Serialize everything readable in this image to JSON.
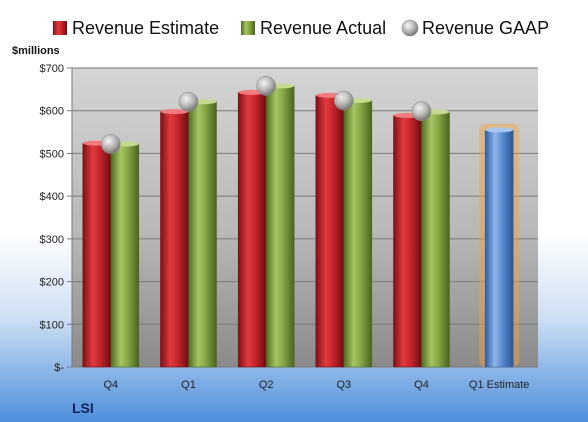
{
  "chart_data": {
    "type": "bar",
    "company": "LSI",
    "ylabel": "$millions",
    "categories": [
      "Q4",
      "Q1",
      "Q2",
      "Q3",
      "Q4",
      "Q1 Estimate"
    ],
    "ylim": [
      0,
      700
    ],
    "yticks": [
      0,
      100,
      200,
      300,
      400,
      500,
      600,
      700
    ],
    "ytick_labels": [
      "$-",
      "$100",
      "$200",
      "$300",
      "$400",
      "$500",
      "$600",
      "$700"
    ],
    "grid": true,
    "legend_position": "top",
    "series": [
      {
        "name": "Revenue Estimate",
        "marker": "bar",
        "color": "#c0272d",
        "values": [
          524,
          598,
          643,
          636,
          589,
          null
        ]
      },
      {
        "name": "Revenue Actual",
        "marker": "bar",
        "color": "#86a845",
        "values": [
          522,
          621,
          658,
          624,
          597,
          null
        ]
      },
      {
        "name": "Revenue GAAP",
        "marker": "circle",
        "color": "#b8b8b8",
        "values": [
          522,
          621,
          658,
          624,
          599,
          null
        ]
      }
    ],
    "estimate": {
      "category": "Q1 Estimate",
      "value": 555,
      "color": "#5b8bd0",
      "glow": "#f2a23a"
    }
  }
}
